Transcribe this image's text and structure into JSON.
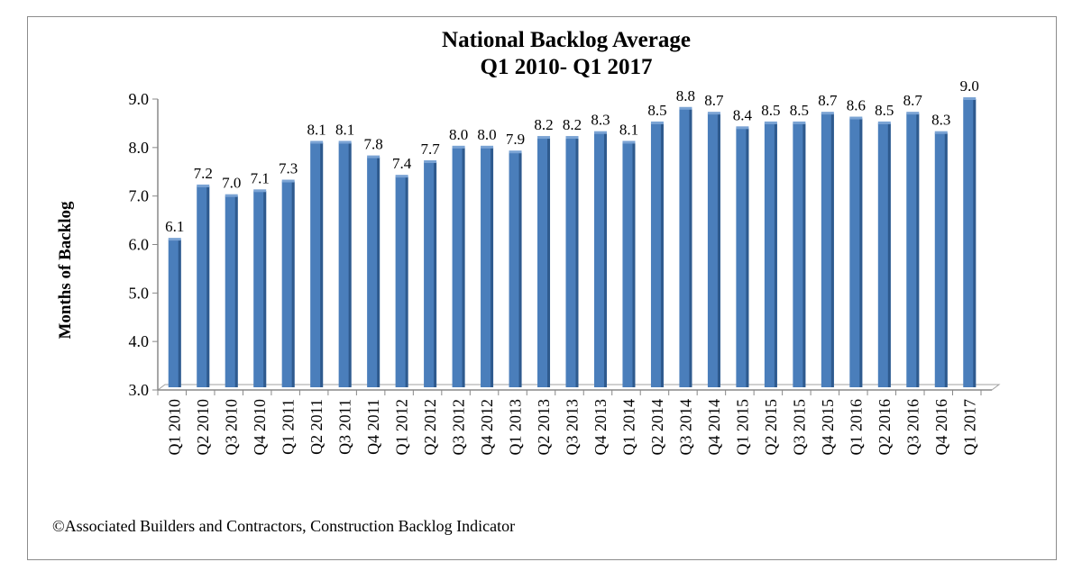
{
  "chart_data": {
    "type": "bar",
    "title": "National  Backlog Average",
    "subtitle": "Q1 2010- Q1 2017",
    "xlabel": "",
    "ylabel": "Months  of Backlog",
    "ylim": [
      3.0,
      9.0
    ],
    "yticks": [
      "3.0",
      "4.0",
      "5.0",
      "6.0",
      "7.0",
      "8.0",
      "9.0"
    ],
    "grid": false,
    "bar_color": "#4a7ebb",
    "categories": [
      "Q1 2010",
      "Q2 2010",
      "Q3 2010",
      "Q4 2010",
      "Q1 2011",
      "Q2 2011",
      "Q3 2011",
      "Q4 2011",
      "Q1 2012",
      "Q2 2012",
      "Q3 2012",
      "Q4 2012",
      "Q1 2013",
      "Q2 2013",
      "Q3 2013",
      "Q4 2013",
      "Q1 2014",
      "Q2 2014",
      "Q3 2014",
      "Q4 2014",
      "Q1 2015",
      "Q2 2015",
      "Q3 2015",
      "Q4 2015",
      "Q1 2016",
      "Q2 2016",
      "Q3 2016",
      "Q4 2016",
      "Q1 2017"
    ],
    "values": [
      6.1,
      7.2,
      7.0,
      7.1,
      7.3,
      8.1,
      8.1,
      7.8,
      7.4,
      7.7,
      8.0,
      8.0,
      7.9,
      8.2,
      8.2,
      8.3,
      8.1,
      8.5,
      8.8,
      8.7,
      8.4,
      8.5,
      8.5,
      8.7,
      8.6,
      8.5,
      8.7,
      8.3,
      9.0
    ],
    "source": "©Associated Builders and Contractors, Construction Backlog  Indicator"
  }
}
